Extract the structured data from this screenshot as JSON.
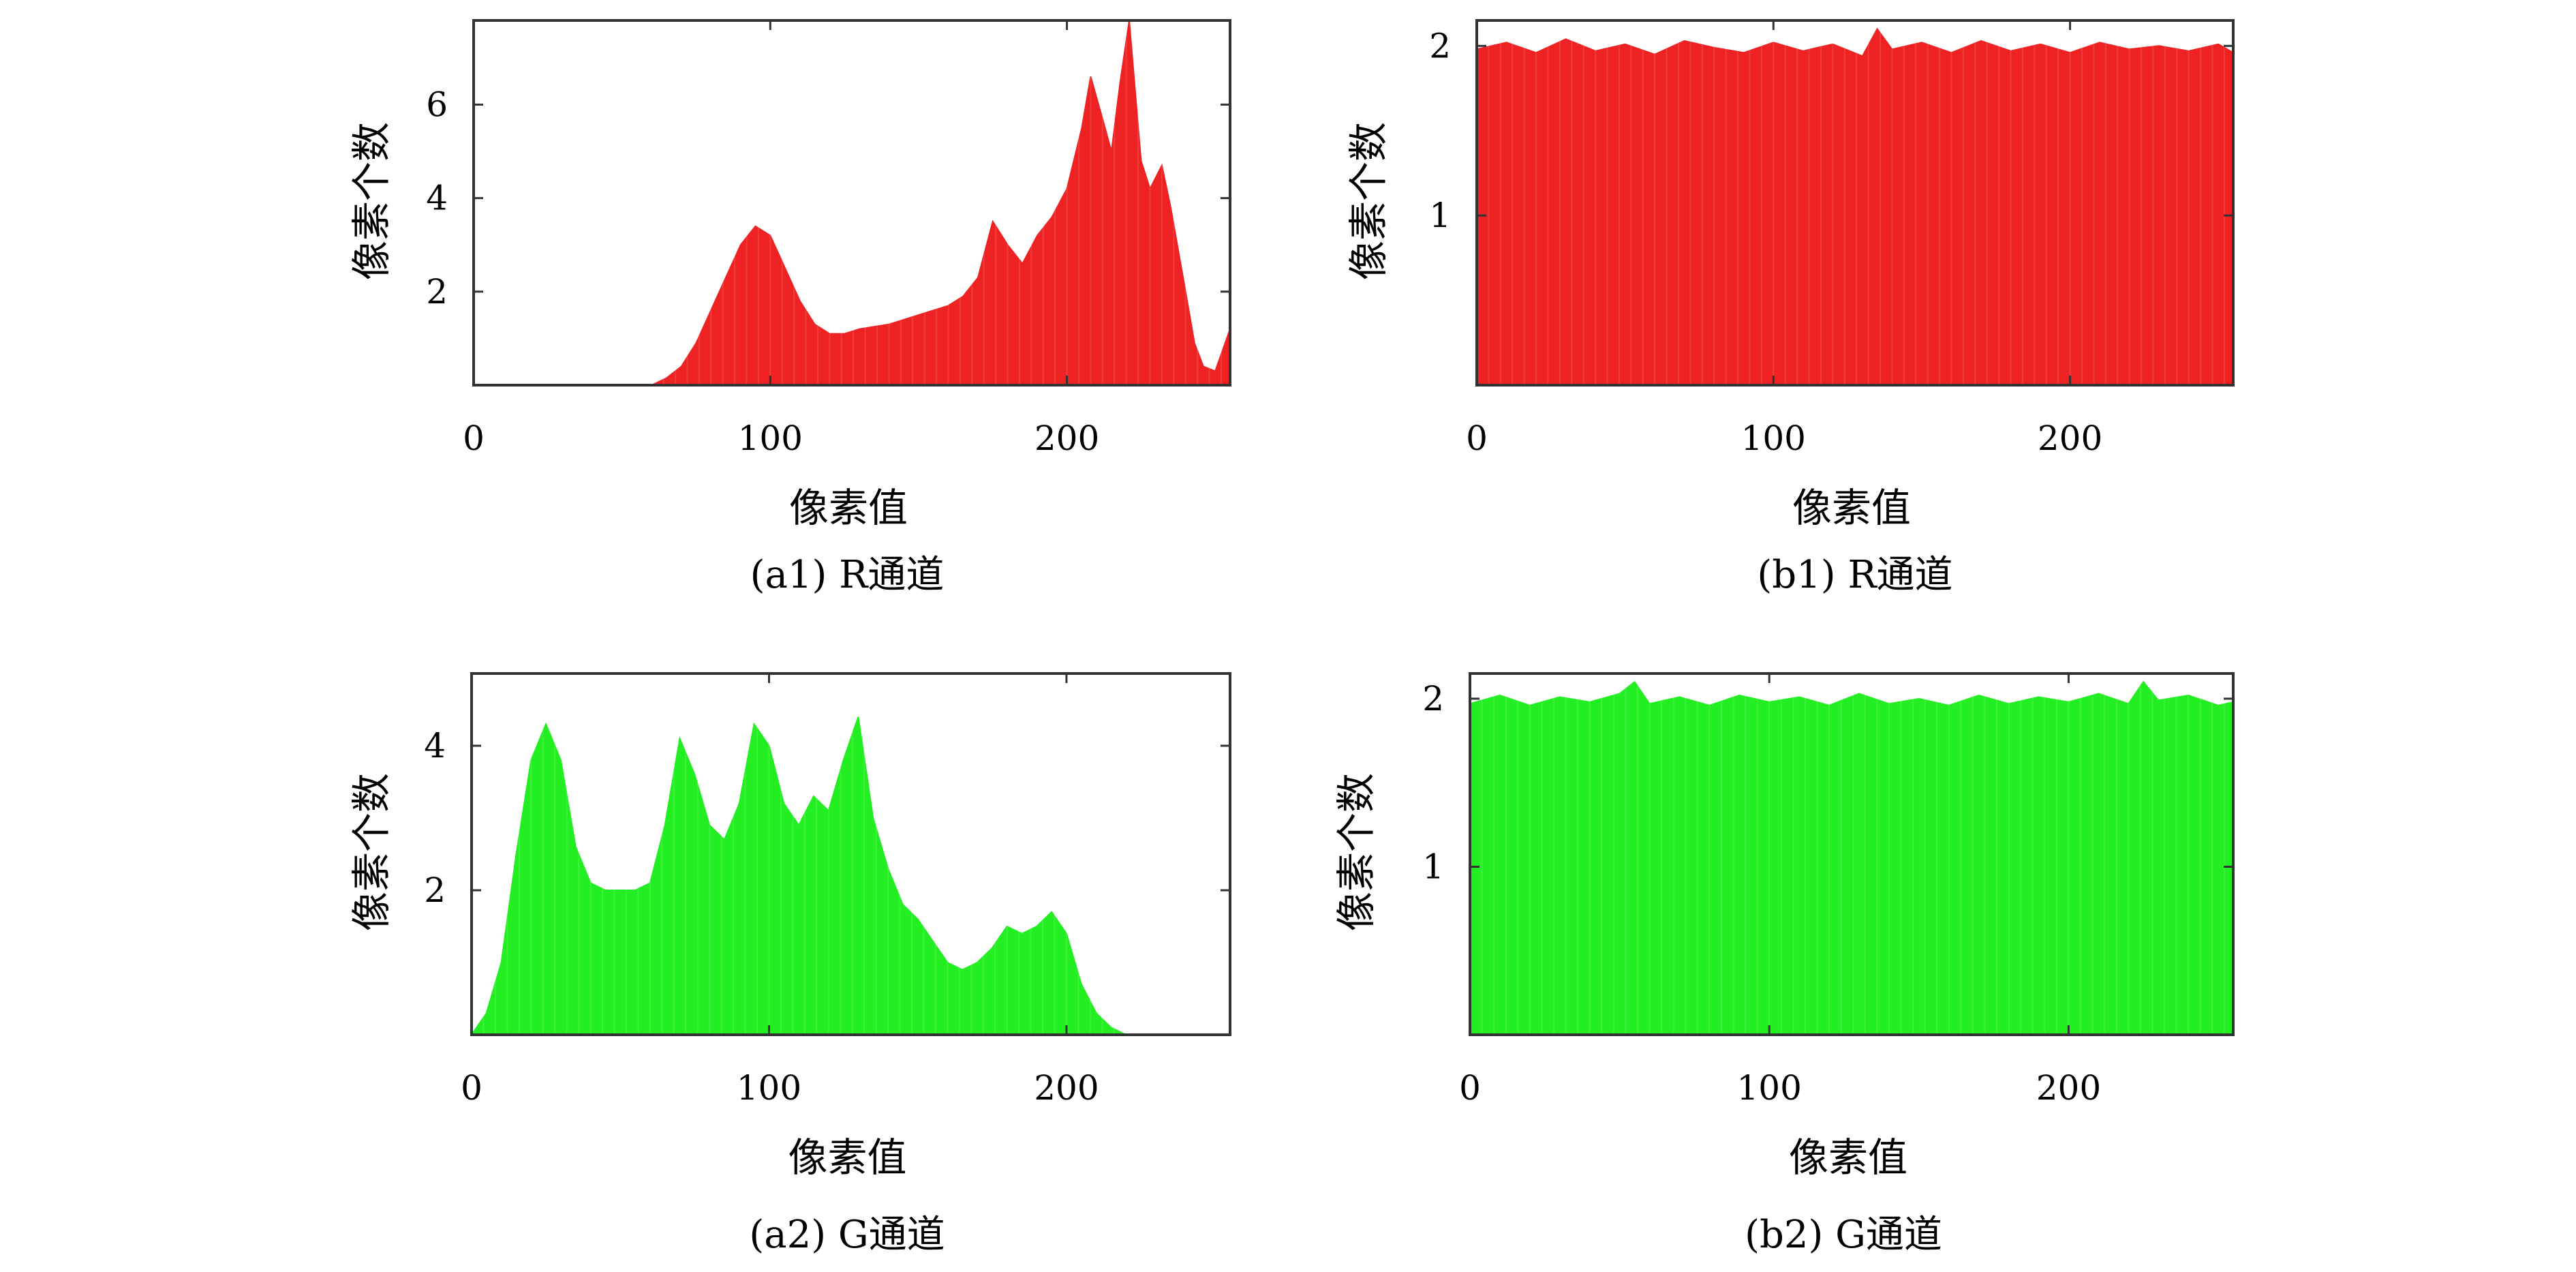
{
  "figure": {
    "panels": [
      {
        "id": "a1",
        "caption": "(a1) R通道",
        "ylabel": "像素个数",
        "xlabel": "像素值",
        "color": "#ee2222"
      },
      {
        "id": "b1",
        "caption": "(b1) R通道",
        "ylabel": "像素个数",
        "xlabel": "像素值",
        "color": "#ee2222"
      },
      {
        "id": "a2",
        "caption": "(a2) G通道",
        "ylabel": "像素个数",
        "xlabel": "像素值",
        "color": "#22ee22"
      },
      {
        "id": "b2",
        "caption": "(b2) G通道",
        "ylabel": "像素个数",
        "xlabel": "像素值",
        "color": "#22ee22"
      }
    ]
  },
  "chart_data": [
    {
      "panel": "a1",
      "type": "area",
      "title": "(a1) R通道",
      "xlabel": "像素值",
      "ylabel": "像素个数",
      "xlim": [
        0,
        255
      ],
      "ylim": [
        0,
        7.8
      ],
      "xticks": [
        0,
        100,
        200
      ],
      "yticks": [
        2,
        4,
        6
      ],
      "grid": false,
      "color": "#ee2222",
      "x": [
        0,
        60,
        65,
        70,
        75,
        80,
        85,
        90,
        95,
        100,
        105,
        110,
        115,
        120,
        125,
        130,
        140,
        150,
        160,
        165,
        170,
        175,
        180,
        185,
        190,
        195,
        200,
        205,
        208,
        212,
        215,
        218,
        221,
        225,
        228,
        232,
        235,
        240,
        243,
        246,
        250,
        255
      ],
      "y": [
        0,
        0,
        0.15,
        0.4,
        0.9,
        1.6,
        2.3,
        3.0,
        3.4,
        3.2,
        2.5,
        1.8,
        1.3,
        1.1,
        1.1,
        1.2,
        1.3,
        1.5,
        1.7,
        1.9,
        2.3,
        3.5,
        3.0,
        2.6,
        3.2,
        3.6,
        4.2,
        5.5,
        6.6,
        5.7,
        5.0,
        6.5,
        7.8,
        4.8,
        4.2,
        4.7,
        3.8,
        2.0,
        0.9,
        0.4,
        0.3,
        1.2
      ]
    },
    {
      "panel": "b1",
      "type": "area",
      "title": "(b1) R通道",
      "xlabel": "像素值",
      "ylabel": "像素个数",
      "xlim": [
        0,
        255
      ],
      "ylim": [
        0,
        2.15
      ],
      "xticks": [
        0,
        100,
        200
      ],
      "yticks": [
        1,
        2
      ],
      "grid": false,
      "color": "#ee2222",
      "x": [
        0,
        10,
        20,
        30,
        40,
        50,
        60,
        70,
        80,
        90,
        100,
        110,
        120,
        130,
        135,
        140,
        150,
        160,
        170,
        180,
        190,
        200,
        210,
        220,
        230,
        240,
        250,
        255
      ],
      "y": [
        1.98,
        2.02,
        1.96,
        2.04,
        1.97,
        2.01,
        1.95,
        2.03,
        1.99,
        1.96,
        2.02,
        1.97,
        2.01,
        1.94,
        2.1,
        1.98,
        2.02,
        1.96,
        2.03,
        1.97,
        2.01,
        1.96,
        2.02,
        1.98,
        2.0,
        1.97,
        2.01,
        1.96
      ]
    },
    {
      "panel": "a2",
      "type": "area",
      "title": "(a2) G通道",
      "xlabel": "像素值",
      "ylabel": "像素个数",
      "xlim": [
        0,
        255
      ],
      "ylim": [
        0,
        5
      ],
      "xticks": [
        0,
        100,
        200
      ],
      "yticks": [
        2,
        4
      ],
      "grid": false,
      "color": "#22ee22",
      "x": [
        0,
        5,
        10,
        15,
        20,
        25,
        30,
        35,
        40,
        45,
        50,
        55,
        60,
        65,
        70,
        75,
        80,
        85,
        90,
        95,
        100,
        105,
        110,
        115,
        120,
        125,
        130,
        135,
        140,
        145,
        150,
        155,
        160,
        165,
        170,
        175,
        180,
        185,
        190,
        195,
        200,
        205,
        210,
        215,
        220,
        225
      ],
      "y": [
        0,
        0.3,
        1.0,
        2.5,
        3.8,
        4.3,
        3.8,
        2.6,
        2.1,
        2.0,
        2.0,
        2.0,
        2.1,
        2.9,
        4.1,
        3.6,
        2.9,
        2.7,
        3.2,
        4.3,
        4.0,
        3.2,
        2.9,
        3.3,
        3.1,
        3.8,
        4.4,
        3.0,
        2.3,
        1.8,
        1.6,
        1.3,
        1.0,
        0.9,
        1.0,
        1.2,
        1.5,
        1.4,
        1.5,
        1.7,
        1.4,
        0.7,
        0.3,
        0.1,
        0.0,
        0
      ]
    },
    {
      "panel": "b2",
      "type": "area",
      "title": "(b2) G通道",
      "xlabel": "像素值",
      "ylabel": "像素个数",
      "xlim": [
        0,
        255
      ],
      "ylim": [
        0,
        2.15
      ],
      "xticks": [
        0,
        100,
        200
      ],
      "yticks": [
        1,
        2
      ],
      "grid": false,
      "color": "#22ee22",
      "x": [
        0,
        10,
        20,
        30,
        40,
        50,
        55,
        60,
        70,
        80,
        90,
        100,
        110,
        120,
        130,
        140,
        150,
        160,
        170,
        180,
        190,
        200,
        210,
        220,
        225,
        230,
        240,
        250,
        255
      ],
      "y": [
        1.97,
        2.02,
        1.96,
        2.01,
        1.98,
        2.03,
        2.1,
        1.97,
        2.01,
        1.96,
        2.02,
        1.98,
        2.01,
        1.96,
        2.03,
        1.97,
        2.0,
        1.96,
        2.02,
        1.97,
        2.01,
        1.98,
        2.03,
        1.97,
        2.1,
        1.99,
        2.02,
        1.96,
        1.98
      ]
    }
  ]
}
